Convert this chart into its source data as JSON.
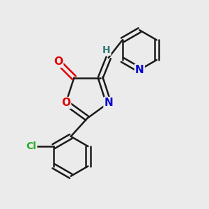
{
  "background_color": "#ebebeb",
  "bond_color": "#1a1a1a",
  "atom_colors": {
    "O": "#dd0000",
    "N": "#0000cc",
    "Cl": "#22aa22",
    "H": "#337777",
    "C": "#1a1a1a"
  },
  "figsize": [
    3.0,
    3.0
  ],
  "dpi": 100
}
